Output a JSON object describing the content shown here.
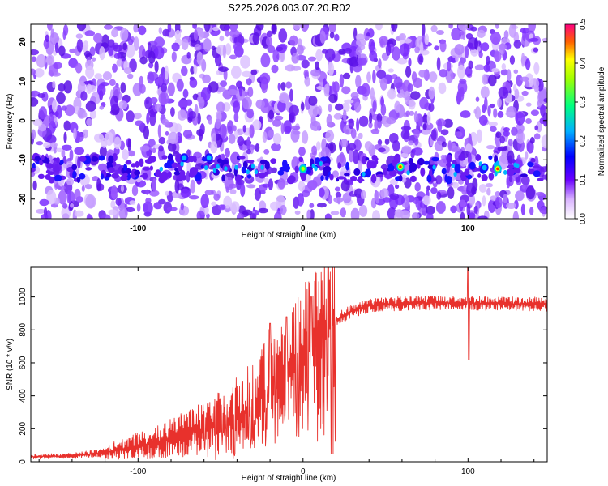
{
  "title": "S225.2026.003.07.20.R02",
  "colors": {
    "line": "#e8312c",
    "axis": "#000000",
    "spectrogram_base": "#7a2cff",
    "spectrogram_bg": "#ffffff"
  },
  "chart_data": [
    {
      "type": "heatmap",
      "title": "S225.2026.003.07.20.R02",
      "xlabel": "Height of straight line (km)",
      "ylabel": "Frequency (Hz)",
      "xlim": [
        -165,
        148
      ],
      "ylim": [
        -25,
        24.5
      ],
      "xticks": [
        -100,
        0,
        100
      ],
      "yticks": [
        -20,
        -10,
        0,
        10,
        20
      ],
      "signal_band_hz": -12.3,
      "hotspots": [
        {
          "x": 0,
          "y": -12.3,
          "amp": 0.32
        },
        {
          "x": 59,
          "y": -11.8,
          "amp": 0.42
        },
        {
          "x": 118,
          "y": -12.3,
          "amp": 0.45
        },
        {
          "x": -72,
          "y": -9.5,
          "amp": 0.2
        },
        {
          "x": -57,
          "y": -9.5,
          "amp": 0.2
        },
        {
          "x": 110,
          "y": -12,
          "amp": 0.18
        }
      ],
      "colorbar": {
        "label": "Normalized spectral amplitude",
        "range": [
          0,
          0.5
        ],
        "ticks": [
          "0.0",
          "0.1",
          "0.2",
          "0.3",
          "0.4",
          "0.5"
        ]
      }
    },
    {
      "type": "line",
      "title": "",
      "xlabel": "Height of straight line (km)",
      "ylabel": "SNR (10 * v/v)",
      "xlim": [
        -165,
        148
      ],
      "ylim": [
        0,
        1180
      ],
      "xticks": [
        -100,
        0,
        100
      ],
      "yticks": [
        0,
        200,
        400,
        600,
        800,
        1000
      ],
      "series": [
        {
          "name": "SNR",
          "envelope": {
            "x": [
              -165,
              -140,
              -120,
              -100,
              -80,
              -60,
              -45,
              -35,
              -25,
              -20,
              -15,
              -10,
              -5,
              0,
              5,
              10,
              15,
              20,
              25,
              30,
              35,
              40,
              60,
              80,
              95,
              100,
              105,
              120,
              148
            ],
            "y": [
              30,
              35,
              55,
              95,
              140,
              200,
              255,
              300,
              390,
              470,
              540,
              590,
              640,
              690,
              740,
              780,
              830,
              860,
              890,
              915,
              930,
              945,
              960,
              965,
              965,
              965,
              960,
              960,
              955
            ]
          },
          "events": [
            {
              "x": -20,
              "y": 840
            },
            {
              "x": -10,
              "y": 880
            },
            {
              "x": 5,
              "y": 1000
            },
            {
              "x": 100,
              "y": 1180
            },
            {
              "x": 100.5,
              "y": 620
            }
          ]
        }
      ]
    }
  ]
}
